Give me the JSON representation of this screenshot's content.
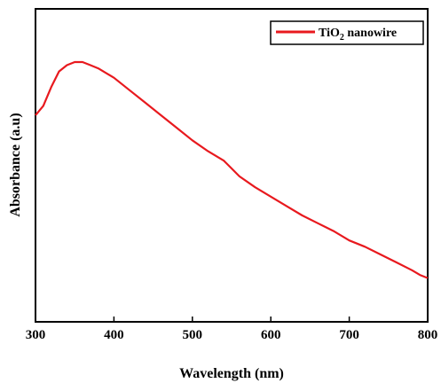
{
  "chart_data": {
    "type": "line",
    "title": "",
    "xlabel": "Wavelength (nm)",
    "ylabel": "Absorbance (a.u)",
    "xlim": [
      300,
      800
    ],
    "ylim": [
      0,
      1
    ],
    "x_ticks": [
      300,
      400,
      500,
      600,
      700,
      800
    ],
    "x_tick_labels": [
      "300",
      "400",
      "500",
      "600",
      "700",
      "800"
    ],
    "y_ticks_labeled": false,
    "grid": false,
    "legend_position": "top-right",
    "series": [
      {
        "name": "TiO2 nanowire",
        "legend_main": "TiO",
        "legend_sub": "2",
        "legend_tail": " nanowire",
        "color": "#e8191e",
        "x": [
          300,
          310,
          320,
          330,
          340,
          350,
          360,
          370,
          380,
          390,
          400,
          420,
          440,
          460,
          480,
          500,
          520,
          540,
          550,
          560,
          580,
          600,
          620,
          640,
          660,
          680,
          700,
          720,
          740,
          760,
          780,
          790,
          800
        ],
        "y": [
          0.66,
          0.69,
          0.75,
          0.8,
          0.82,
          0.83,
          0.83,
          0.82,
          0.81,
          0.795,
          0.78,
          0.74,
          0.7,
          0.66,
          0.62,
          0.58,
          0.545,
          0.515,
          0.49,
          0.465,
          0.43,
          0.4,
          0.37,
          0.34,
          0.315,
          0.29,
          0.26,
          0.24,
          0.215,
          0.19,
          0.165,
          0.15,
          0.14
        ]
      }
    ]
  }
}
